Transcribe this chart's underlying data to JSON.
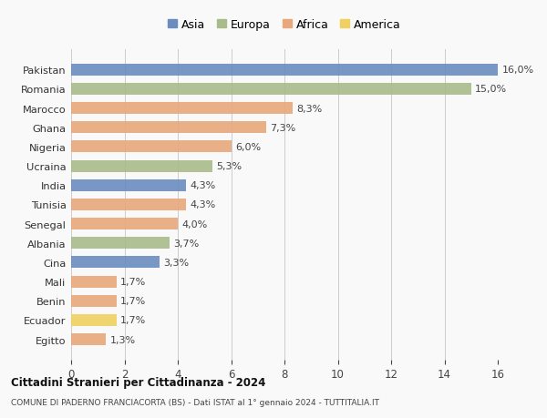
{
  "countries": [
    "Pakistan",
    "Romania",
    "Marocco",
    "Ghana",
    "Nigeria",
    "Ucraina",
    "India",
    "Tunisia",
    "Senegal",
    "Albania",
    "Cina",
    "Mali",
    "Benin",
    "Ecuador",
    "Egitto"
  ],
  "values": [
    16.0,
    15.0,
    8.3,
    7.3,
    6.0,
    5.3,
    4.3,
    4.3,
    4.0,
    3.7,
    3.3,
    1.7,
    1.7,
    1.7,
    1.3
  ],
  "labels": [
    "16,0%",
    "15,0%",
    "8,3%",
    "7,3%",
    "6,0%",
    "5,3%",
    "4,3%",
    "4,3%",
    "4,0%",
    "3,7%",
    "3,3%",
    "1,7%",
    "1,7%",
    "1,7%",
    "1,3%"
  ],
  "continents": [
    "Asia",
    "Europa",
    "Africa",
    "Africa",
    "Africa",
    "Europa",
    "Asia",
    "Africa",
    "Africa",
    "Europa",
    "Asia",
    "Africa",
    "Africa",
    "America",
    "Africa"
  ],
  "colors": {
    "Asia": "#6b8cbf",
    "Europa": "#a8bc8a",
    "Africa": "#e8a87c",
    "America": "#f0d060"
  },
  "legend_order": [
    "Asia",
    "Europa",
    "Africa",
    "America"
  ],
  "title1": "Cittadini Stranieri per Cittadinanza - 2024",
  "title2": "COMUNE DI PADERNO FRANCIACORTA (BS) - Dati ISTAT al 1° gennaio 2024 - TUTTITALIA.IT",
  "xlim": [
    0,
    16
  ],
  "xticks": [
    0,
    2,
    4,
    6,
    8,
    10,
    12,
    14,
    16
  ],
  "background_color": "#f9f9f9",
  "grid_color": "#cccccc"
}
